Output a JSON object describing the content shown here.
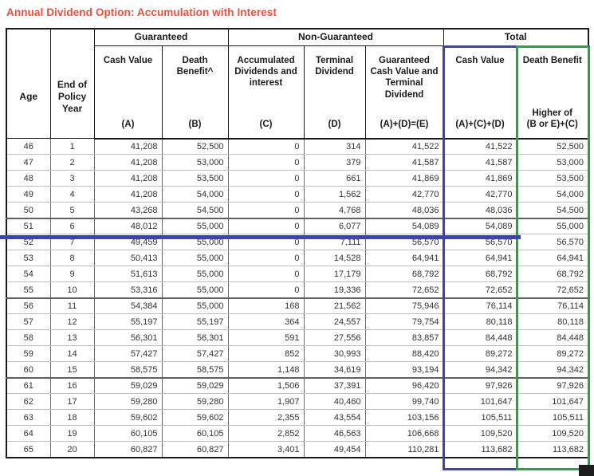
{
  "title": "Annual Dividend Option: Accumulation with Interest",
  "colors": {
    "title_red": "#F04E3B",
    "highlight_blue": "#3B43B3",
    "highlight_green": "#27A24A",
    "border_black": "#1a1a1a"
  },
  "table": {
    "groups": {
      "guaranteed": "Guaranteed",
      "non_guaranteed": "Non-Guaranteed",
      "total": "Total"
    },
    "columns": {
      "age": "Age",
      "end_of_policy_year": "End of Policy Year",
      "guaranteed_cash_value": {
        "label": "Cash Value",
        "formula": "(A)"
      },
      "guaranteed_death_benefit": {
        "label": "Death Benefit^",
        "formula": "(B)"
      },
      "accumulated_dividends": {
        "label": "Accumulated Dividends and interest",
        "formula": "(C)"
      },
      "terminal_dividend": {
        "label": "Terminal Dividend",
        "formula": "(D)"
      },
      "guaranteed_cv_and_td": {
        "label": "Guaranteed Cash Value and Terminal Dividend",
        "formula": "(A)+(D)=(E)"
      },
      "total_cash_value": {
        "label": "Cash Value",
        "formula": "(A)+(C)+(D)"
      },
      "total_death_benefit": {
        "label": "Death Benefit",
        "formula": "Higher of\n(B or E)+(C)"
      }
    },
    "rows": [
      [
        "46",
        "1",
        "41,208",
        "52,500",
        "0",
        "314",
        "41,522",
        "41,522",
        "52,500"
      ],
      [
        "47",
        "2",
        "41,208",
        "53,000",
        "0",
        "379",
        "41,587",
        "41,587",
        "53,000"
      ],
      [
        "48",
        "3",
        "41,208",
        "53,500",
        "0",
        "661",
        "41,869",
        "41,869",
        "53,500"
      ],
      [
        "49",
        "4",
        "41,208",
        "54,000",
        "0",
        "1,562",
        "42,770",
        "42,770",
        "54,000"
      ],
      [
        "50",
        "5",
        "43,268",
        "54,500",
        "0",
        "4,768",
        "48,036",
        "48,036",
        "54,500"
      ],
      [
        "51",
        "6",
        "48,012",
        "55,000",
        "0",
        "6,077",
        "54,089",
        "54,089",
        "55,000"
      ],
      [
        "52",
        "7",
        "49,459",
        "55,000",
        "0",
        "7,111",
        "56,570",
        "56,570",
        "56,570"
      ],
      [
        "53",
        "8",
        "50,413",
        "55,000",
        "0",
        "14,528",
        "64,941",
        "64,941",
        "64,941"
      ],
      [
        "54",
        "9",
        "51,613",
        "55,000",
        "0",
        "17,179",
        "68,792",
        "68,792",
        "68,792"
      ],
      [
        "55",
        "10",
        "53,316",
        "55,000",
        "0",
        "19,336",
        "72,652",
        "72,652",
        "72,652"
      ],
      [
        "56",
        "11",
        "54,384",
        "55,000",
        "168",
        "21,562",
        "75,946",
        "76,114",
        "76,114"
      ],
      [
        "57",
        "12",
        "55,197",
        "55,197",
        "364",
        "24,557",
        "79,754",
        "80,118",
        "80,118"
      ],
      [
        "58",
        "13",
        "56,301",
        "56,301",
        "591",
        "27,556",
        "83,857",
        "84,448",
        "84,448"
      ],
      [
        "59",
        "14",
        "57,427",
        "57,427",
        "852",
        "30,993",
        "88,420",
        "89,272",
        "89,272"
      ],
      [
        "60",
        "15",
        "58,575",
        "58,575",
        "1,148",
        "34,619",
        "93,194",
        "94,342",
        "94,342"
      ],
      [
        "61",
        "16",
        "59,029",
        "59,029",
        "1,506",
        "37,391",
        "96,420",
        "97,926",
        "97,926"
      ],
      [
        "62",
        "17",
        "59,280",
        "59,280",
        "1,907",
        "40,460",
        "99,740",
        "101,647",
        "101,647"
      ],
      [
        "63",
        "18",
        "59,602",
        "59,602",
        "2,355",
        "43,554",
        "103,156",
        "105,511",
        "105,511"
      ],
      [
        "64",
        "19",
        "60,105",
        "60,105",
        "2,852",
        "46,563",
        "106,668",
        "109,520",
        "109,520"
      ],
      [
        "65",
        "20",
        "60,827",
        "60,827",
        "3,401",
        "49,454",
        "110,281",
        "113,682",
        "113,682"
      ]
    ]
  }
}
